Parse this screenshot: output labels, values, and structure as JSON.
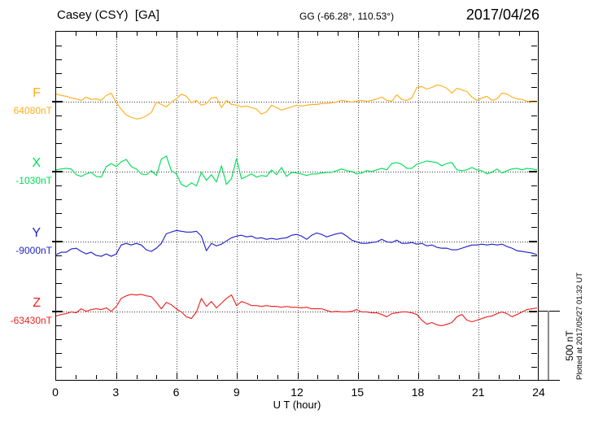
{
  "header": {
    "station": "Casey (CSY)  [GA]",
    "coords": "GG (-66.28°, 110.53°)",
    "date": "2017/04/26"
  },
  "side": {
    "plotted_at": "Plotted at 2017/05/27 01:32 UT"
  },
  "chart_data": {
    "type": "line",
    "title": "Casey (CSY) magnetogram 2017/04/26",
    "xlabel": "U T (hour)",
    "x_range_hours": [
      0,
      24
    ],
    "x_ticks": [
      0,
      3,
      6,
      9,
      12,
      15,
      18,
      21,
      24
    ],
    "x_minor_step_hours": 1,
    "sample_step_hours": 0.25,
    "grid": "dotted vertical lines every 3 h; dotted horizontal baseline per trace",
    "legend_position": "left of each trace",
    "y_minor_tick_nT": 100,
    "scale_bar": {
      "label": "500 nT",
      "span_nT": 500
    },
    "series": [
      {
        "name": "F",
        "color": "#FFAE1A",
        "baseline_label": "64080nT",
        "baseline_nT": 64080,
        "offsets_nT": [
          52,
          41,
          35,
          23,
          17,
          6,
          29,
          12,
          17,
          6,
          41,
          58,
          -12,
          -58,
          -99,
          -116,
          -128,
          -122,
          -105,
          -81,
          -6,
          -23,
          -41,
          -6,
          17,
          52,
          35,
          -12,
          6,
          -29,
          -17,
          23,
          29,
          -46,
          6,
          -23,
          -29,
          -41,
          -35,
          -46,
          -58,
          -93,
          -76,
          -29,
          -46,
          -64,
          -52,
          -41,
          -29,
          -35,
          -29,
          -23,
          -23,
          -17,
          -17,
          -12,
          -6,
          6,
          0,
          -6,
          0,
          6,
          0,
          6,
          17,
          29,
          6,
          0,
          46,
          12,
          6,
          23,
          99,
          105,
          87,
          99,
          116,
          110,
          93,
          58,
          93,
          81,
          70,
          29,
          6,
          23,
          35,
          6,
          17,
          58,
          52,
          29,
          17,
          12,
          0,
          -6,
          -6
        ]
      },
      {
        "name": "X",
        "color": "#00DD55",
        "baseline_label": "-1030nT",
        "baseline_nT": -1030,
        "offsets_nT": [
          6,
          12,
          17,
          12,
          -29,
          -41,
          -23,
          -12,
          -41,
          -46,
          29,
          52,
          29,
          64,
          81,
          29,
          12,
          -23,
          -29,
          0,
          -35,
          81,
          105,
          0,
          -23,
          -99,
          -116,
          -87,
          -110,
          -12,
          -70,
          -29,
          -81,
          35,
          -99,
          -58,
          87,
          -58,
          -41,
          -23,
          -46,
          -35,
          -41,
          6,
          -29,
          23,
          -41,
          -12,
          -17,
          -23,
          -35,
          -23,
          -23,
          -17,
          -12,
          -12,
          0,
          12,
          0,
          -6,
          -23,
          -17,
          0,
          -6,
          6,
          17,
          6,
          52,
          58,
          46,
          17,
          17,
          46,
          58,
          70,
          64,
          58,
          35,
          52,
          58,
          6,
          0,
          6,
          23,
          6,
          0,
          -23,
          -12,
          12,
          -17,
          0,
          12,
          17,
          6,
          17,
          12,
          6
        ]
      },
      {
        "name": "Y",
        "color": "#1F1FCC",
        "baseline_label": "-9000nT",
        "baseline_nT": -9000,
        "offsets_nT": [
          -105,
          -87,
          -87,
          -64,
          -58,
          -81,
          -99,
          -87,
          -110,
          -116,
          -99,
          -116,
          -99,
          -35,
          -23,
          -35,
          -23,
          -35,
          -70,
          -81,
          -58,
          -23,
          46,
          58,
          70,
          64,
          58,
          58,
          64,
          29,
          -76,
          -23,
          -41,
          -29,
          -6,
          17,
          29,
          35,
          23,
          29,
          12,
          17,
          6,
          12,
          6,
          12,
          17,
          35,
          41,
          29,
          6,
          35,
          52,
          41,
          23,
          35,
          46,
          52,
          29,
          0,
          -12,
          -23,
          -23,
          -17,
          -12,
          6,
          -12,
          -17,
          0,
          -23,
          -23,
          -17,
          -29,
          -23,
          -41,
          -35,
          -52,
          -58,
          -58,
          -70,
          -70,
          -58,
          -46,
          -35,
          -35,
          -29,
          -35,
          -29,
          -35,
          -29,
          -46,
          -58,
          -76,
          -81,
          -87,
          -93,
          -105
        ]
      },
      {
        "name": "Z",
        "color": "#EE2222",
        "baseline_label": "-63430nT",
        "baseline_nT": -63430,
        "offsets_nT": [
          -46,
          -35,
          -29,
          -17,
          -23,
          6,
          -12,
          0,
          6,
          0,
          12,
          -12,
          23,
          81,
          99,
          110,
          105,
          110,
          99,
          93,
          52,
          6,
          52,
          35,
          6,
          -17,
          -52,
          -64,
          -17,
          81,
          23,
          58,
          12,
          46,
          81,
          105,
          29,
          58,
          46,
          29,
          29,
          23,
          29,
          23,
          23,
          17,
          23,
          17,
          17,
          12,
          17,
          6,
          6,
          6,
          -6,
          -17,
          -12,
          -17,
          -17,
          -12,
          0,
          -17,
          -17,
          -23,
          -23,
          -35,
          -52,
          -29,
          -23,
          -17,
          -17,
          -23,
          -35,
          -76,
          -105,
          -93,
          -110,
          -116,
          -105,
          -93,
          -52,
          -35,
          -76,
          -87,
          -76,
          -64,
          -52,
          -46,
          -29,
          -17,
          -29,
          -52,
          -35,
          -17,
          0,
          6,
          12
        ]
      }
    ]
  }
}
